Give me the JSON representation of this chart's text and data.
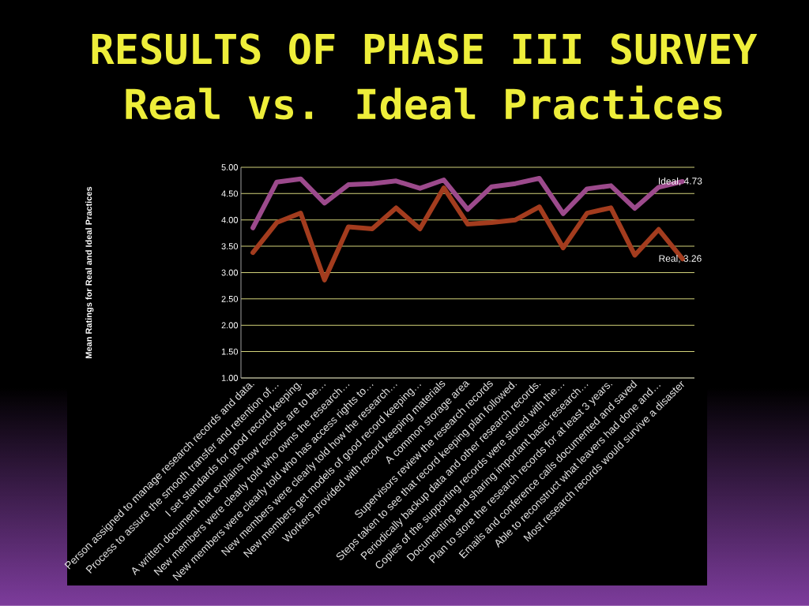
{
  "chart_data": {
    "type": "line",
    "title": "RESULTS OF PHASE III SURVEY",
    "subtitle": "Real vs. Ideal Practices",
    "ylabel": "Mean Ratings for Real and Ideal Practices",
    "categories": [
      "Person assigned to manage research records and data.",
      "Process to assure the smooth transfer and retention of…",
      "I set standards for good record keeping.",
      "A written document that explains how records are to be…",
      "New members were clearly told who owns the research…",
      "New members were clearly told who has access rights to…",
      "New members were clearly told how the research…",
      "New members get models of good record keeping…",
      "Workers provided with record keeping materials",
      "A common storage area",
      "Supervisors review the research records",
      "Steps taken to see that record keeping plan followed.",
      "Periodically backup data and other research records.",
      "Copies of the supporting records were stored with the…",
      "Documenting and sharing important basic research…",
      "Plan to store the research records for at least 3 years.",
      "Emails and conference calls documented and saved",
      "Able to reconstruct what leavers had done and…",
      "Most research records would survive a disaster"
    ],
    "series": [
      {
        "color": "#9c4a8c",
        "values": [
          3.85,
          4.72,
          4.78,
          4.32,
          4.67,
          4.69,
          4.74,
          4.6,
          4.76,
          4.2,
          4.63,
          4.69,
          4.79,
          4.12,
          4.59,
          4.65,
          4.22,
          4.62,
          4.73
        ],
        "value_labels": [
          null,
          null,
          null,
          null,
          null,
          null,
          null,
          null,
          null,
          null,
          null,
          null,
          null,
          null,
          null,
          null,
          null,
          null,
          "Ideal, 4.73"
        ]
      },
      {
        "color": "#a33c1e",
        "values": [
          3.38,
          3.95,
          4.13,
          2.86,
          3.87,
          3.83,
          4.23,
          3.83,
          4.61,
          3.92,
          3.95,
          4.0,
          4.25,
          3.47,
          4.13,
          4.23,
          3.33,
          3.82,
          3.26
        ],
        "value_labels": [
          null,
          null,
          null,
          null,
          null,
          null,
          null,
          null,
          null,
          null,
          null,
          null,
          null,
          null,
          null,
          null,
          null,
          null,
          "Real, 3.26"
        ]
      }
    ],
    "ylim": [
      1,
      5
    ],
    "yticks": [
      {
        "value": 1,
        "label": "1.00"
      },
      {
        "value": 1.5,
        "label": "1.50"
      },
      {
        "value": 2,
        "label": "2.00"
      },
      {
        "value": 2.5,
        "label": "2.50"
      },
      {
        "value": 3,
        "label": "3.00"
      },
      {
        "value": 3.5,
        "label": "3.50"
      },
      {
        "value": 4,
        "label": "4.00"
      },
      {
        "value": 4.5,
        "label": "4.50"
      },
      {
        "value": 5,
        "label": "5.00"
      }
    ],
    "grid": "y",
    "line_style": "solid"
  }
}
